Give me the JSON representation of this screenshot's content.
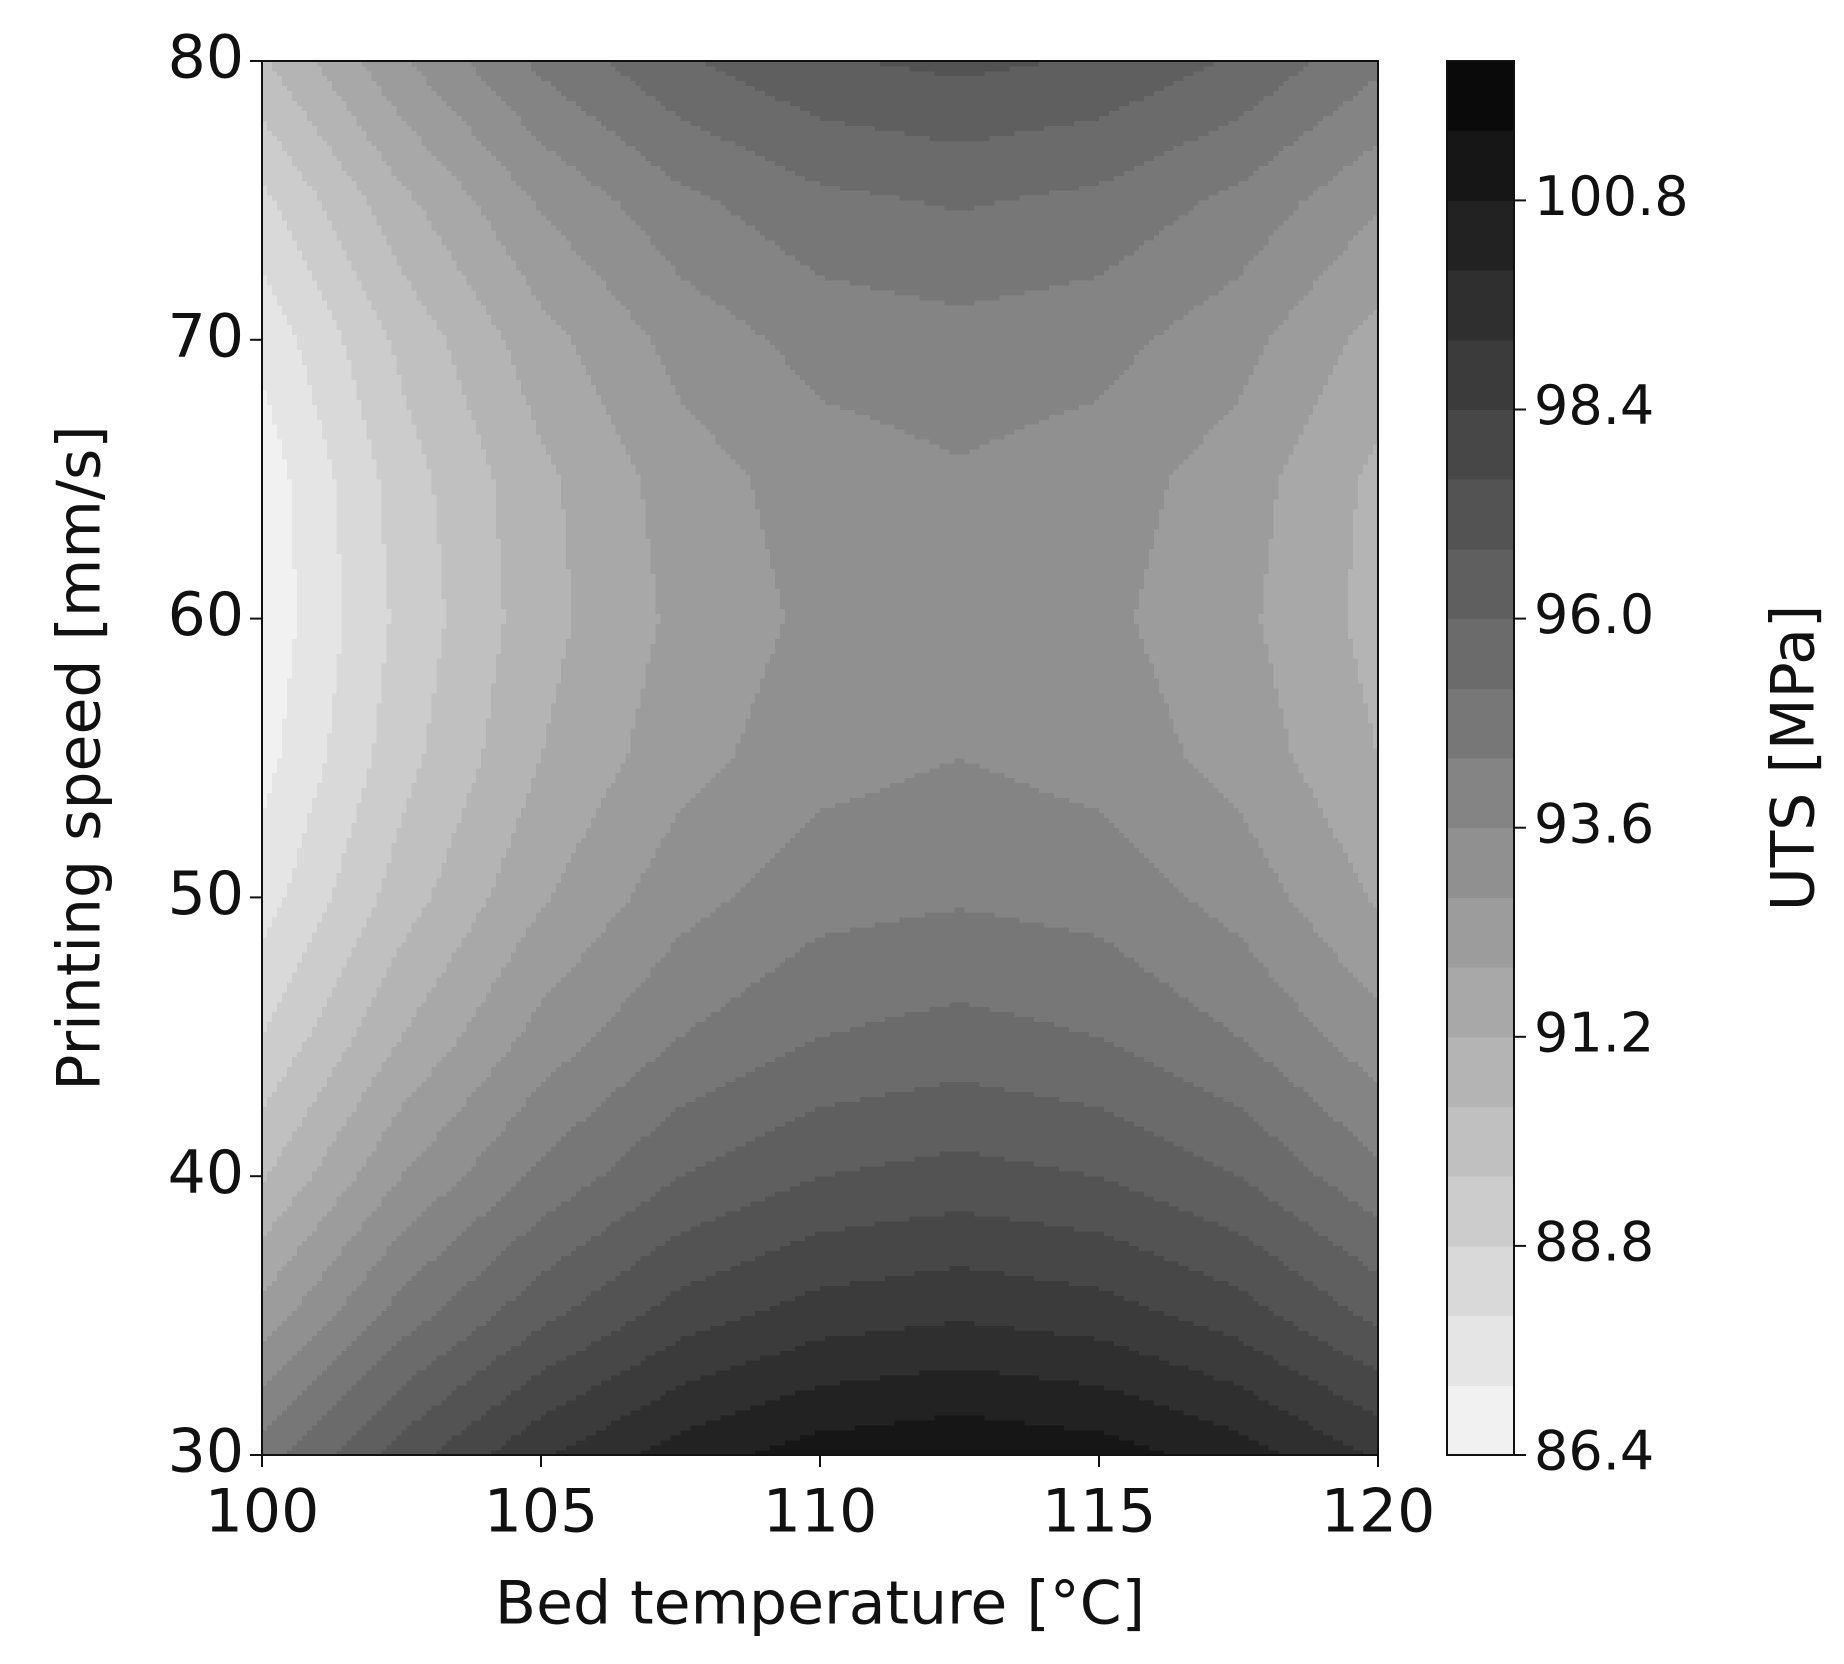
{
  "chart_data": {
    "type": "contour",
    "xlabel": "Bed temperature [°C]",
    "ylabel": "Printing speed  [mm/s]",
    "colorbar_label": "UTS [MPa]",
    "cmap": "Greys",
    "x": [
      100,
      102.5,
      105,
      107.5,
      110,
      112.5,
      115,
      117.5,
      120
    ],
    "y": [
      30,
      35,
      40,
      45,
      50,
      55,
      60,
      65,
      70,
      75,
      80
    ],
    "z": [
      [
        94.8,
        97.2,
        99.1,
        100.4,
        101.2,
        101.5,
        101.2,
        100.4,
        99.1
      ],
      [
        92.3,
        94.8,
        96.6,
        98.0,
        98.8,
        99.1,
        98.8,
        98.0,
        96.6
      ],
      [
        90.3,
        92.8,
        94.6,
        96.0,
        96.8,
        97.1,
        96.8,
        96.0,
        94.6
      ],
      [
        88.8,
        91.2,
        93.1,
        94.4,
        95.2,
        95.5,
        95.2,
        94.4,
        93.1
      ],
      [
        87.6,
        90.0,
        91.9,
        93.3,
        94.1,
        94.3,
        94.1,
        93.3,
        91.9
      ],
      [
        86.9,
        89.3,
        91.2,
        92.5,
        93.3,
        93.6,
        93.3,
        92.5,
        91.2
      ],
      [
        86.6,
        89.0,
        90.9,
        92.2,
        93.0,
        93.3,
        93.0,
        92.2,
        90.9
      ],
      [
        86.7,
        89.2,
        91.0,
        92.4,
        93.2,
        93.5,
        93.2,
        92.4,
        91.0
      ],
      [
        87.4,
        89.8,
        91.7,
        93.1,
        93.9,
        94.1,
        93.9,
        93.1,
        91.7
      ],
      [
        88.6,
        91.0,
        92.9,
        94.2,
        95.0,
        95.3,
        95.0,
        94.2,
        92.9
      ],
      [
        90.3,
        92.7,
        94.6,
        95.9,
        96.7,
        97.0,
        96.7,
        95.9,
        94.6
      ]
    ],
    "xlim": [
      100,
      120
    ],
    "ylim": [
      30,
      80
    ],
    "xticks": [
      100,
      105,
      110,
      115,
      120
    ],
    "yticks": [
      30,
      40,
      50,
      60,
      70,
      80
    ],
    "levels": [
      86.4,
      87.2,
      88.0,
      88.8,
      89.6,
      90.4,
      91.2,
      92.0,
      92.8,
      93.6,
      94.4,
      95.2,
      96.0,
      96.8,
      97.6,
      98.4,
      99.2,
      100.0,
      100.8,
      101.6,
      102.4
    ],
    "clim": [
      86.4,
      102.4
    ],
    "cticks": [
      86.4,
      88.8,
      91.2,
      93.6,
      {
        "value": 96,
        "label": "96.0"
      },
      98.4,
      100.8
    ]
  }
}
